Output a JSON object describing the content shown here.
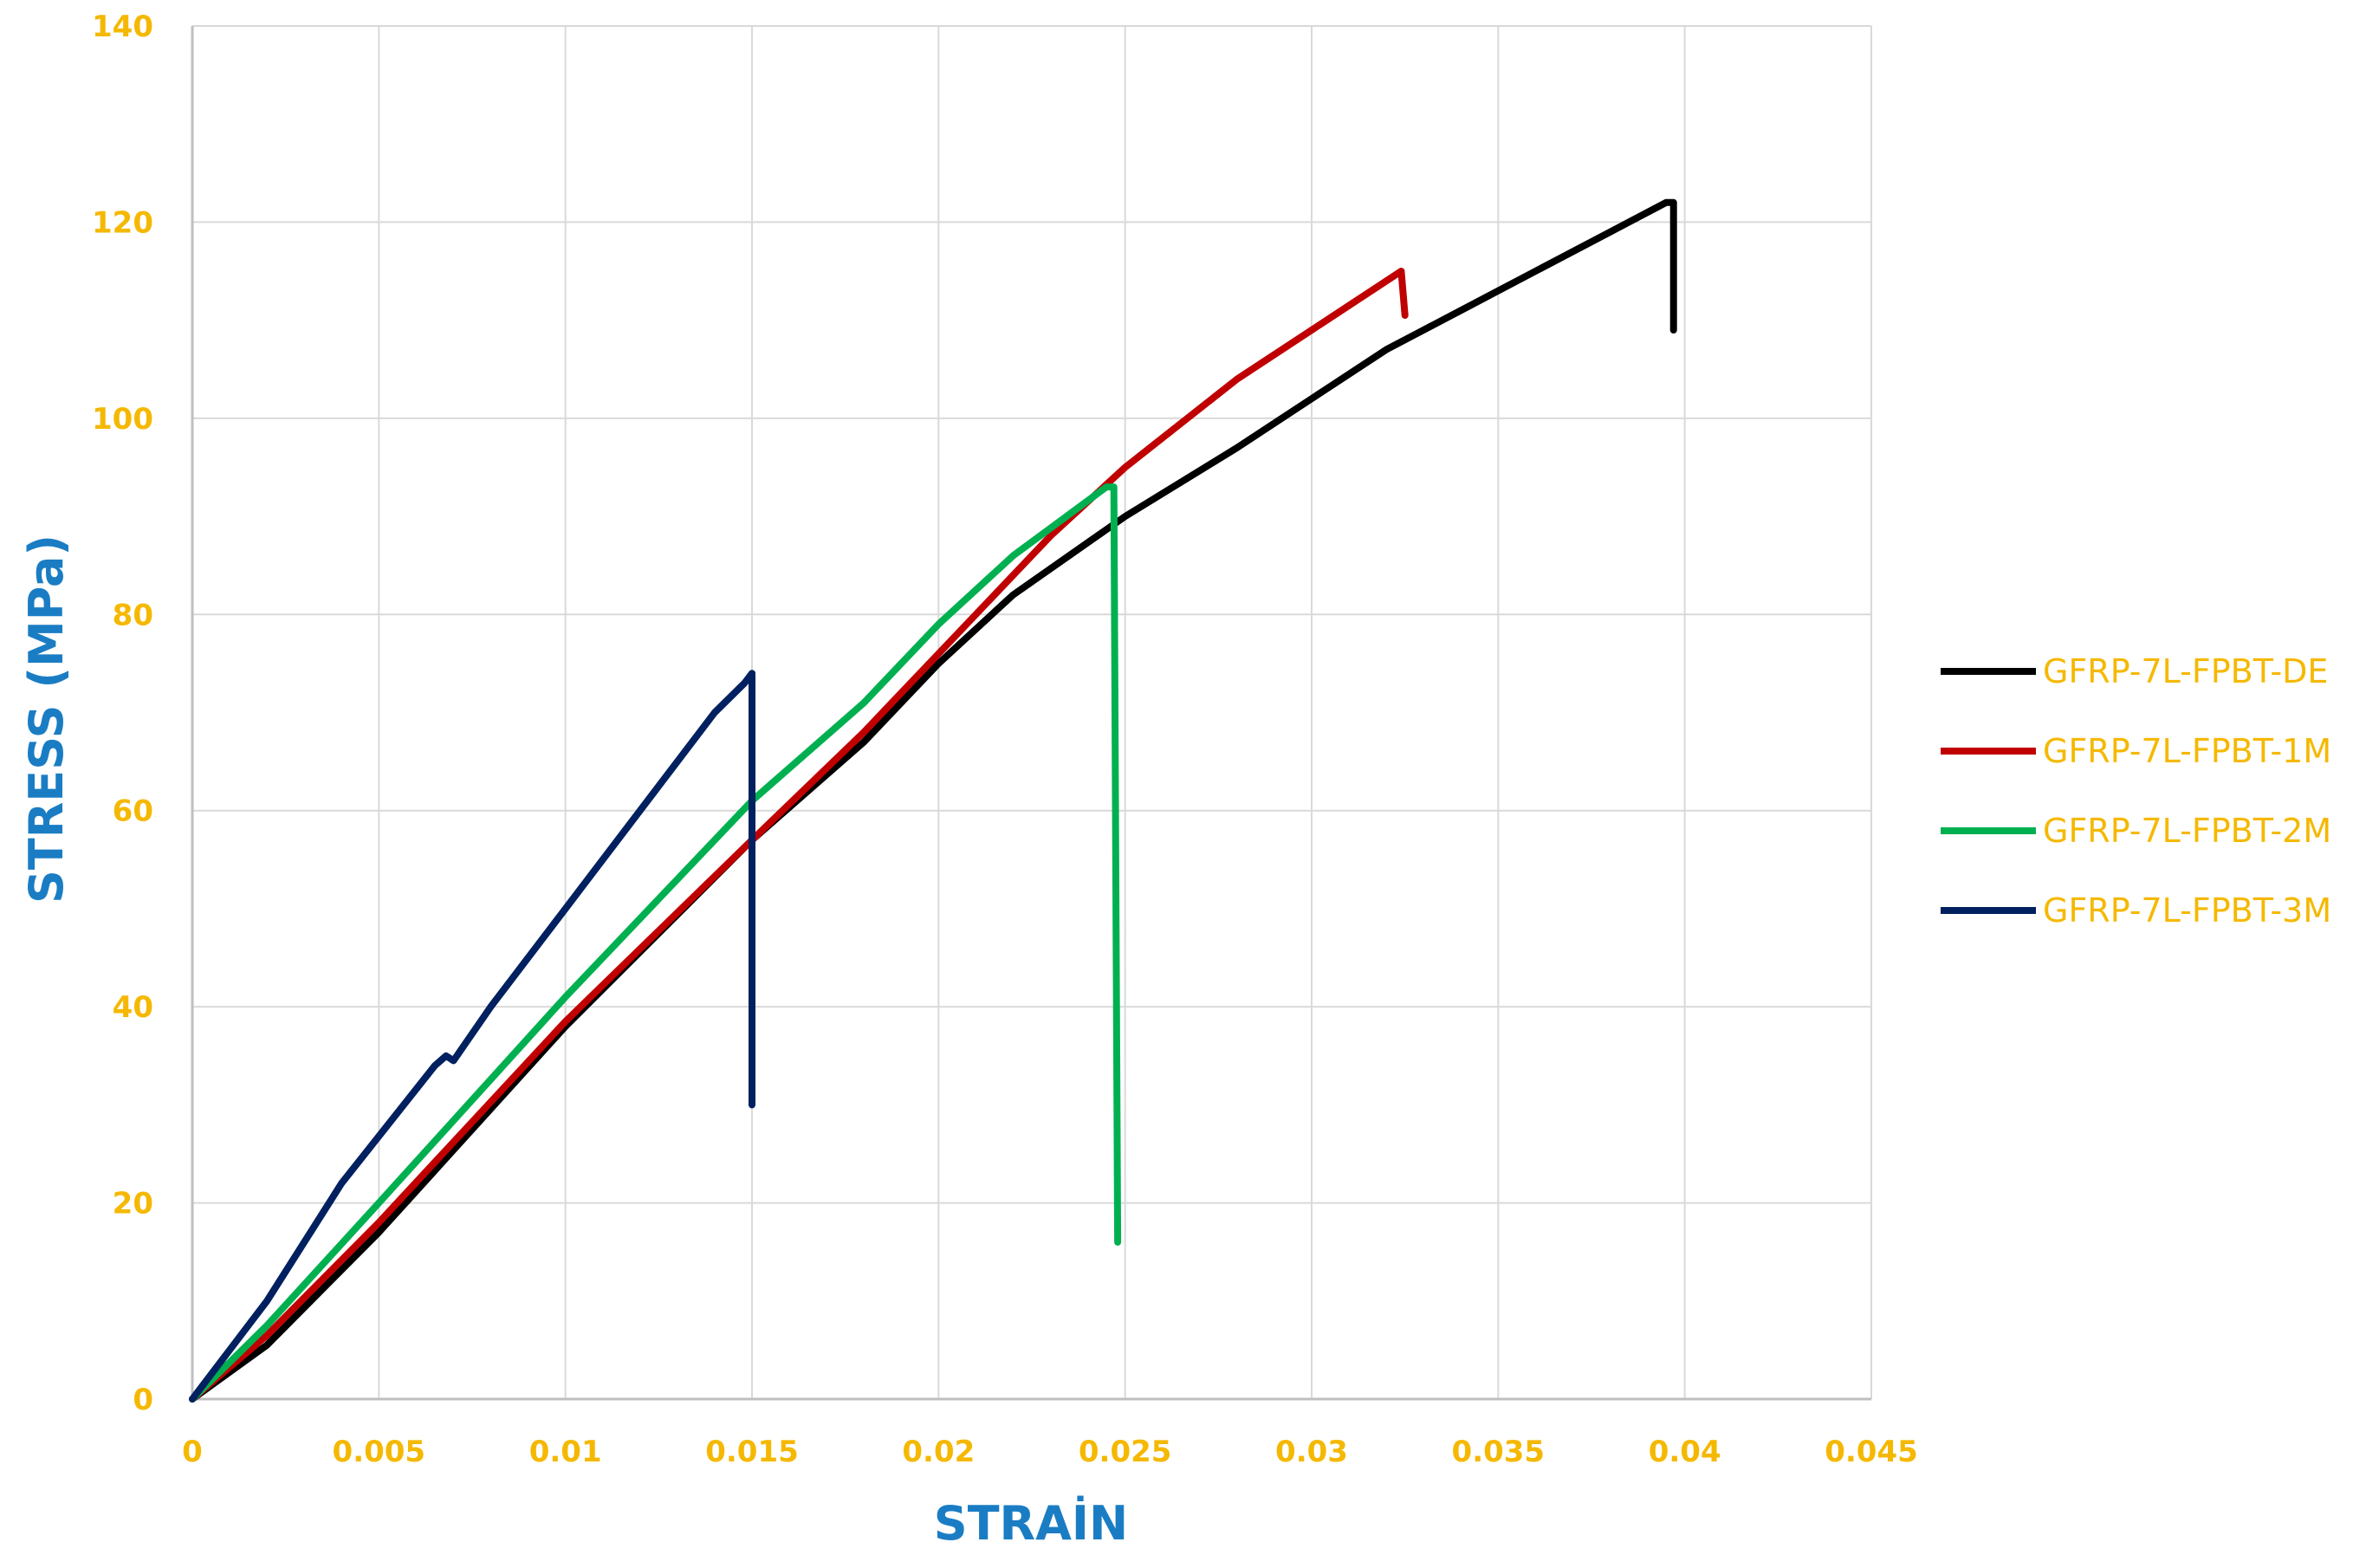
{
  "chart_data": {
    "type": "line",
    "title": "",
    "xlabel": "STRAİN",
    "ylabel": "STRESS (MPa)",
    "xlim": [
      0,
      0.045
    ],
    "ylim": [
      0,
      140
    ],
    "x_ticks": [
      "0",
      "0.005",
      "0.01",
      "0.015",
      "0.02",
      "0.025",
      "0.03",
      "0.035",
      "0.04",
      "0.045"
    ],
    "y_ticks": [
      "0",
      "20",
      "40",
      "60",
      "80",
      "100",
      "120",
      "140"
    ],
    "grid": true,
    "legend_position": "right",
    "colors": {
      "tick_labels": "#F5B800",
      "axis_titles": "#1A7DC4",
      "legend_text": "#F5B800",
      "grid": "#D9D9D9"
    },
    "series": [
      {
        "name": "GFRP-7L-FPBT-DE",
        "color": "#000000",
        "points": [
          [
            0,
            0
          ],
          [
            0.002,
            5.5
          ],
          [
            0.005,
            17
          ],
          [
            0.01,
            38
          ],
          [
            0.015,
            57
          ],
          [
            0.018,
            67
          ],
          [
            0.02,
            75
          ],
          [
            0.022,
            82
          ],
          [
            0.025,
            90
          ],
          [
            0.028,
            97
          ],
          [
            0.03,
            102
          ],
          [
            0.032,
            107
          ],
          [
            0.034,
            111
          ],
          [
            0.036,
            115
          ],
          [
            0.038,
            119
          ],
          [
            0.0395,
            122
          ],
          [
            0.0397,
            122
          ],
          [
            0.0397,
            109
          ]
        ]
      },
      {
        "name": "GFRP-7L-FPBT-1M",
        "color": "#C00000",
        "points": [
          [
            0,
            0
          ],
          [
            0.002,
            6.5
          ],
          [
            0.005,
            18
          ],
          [
            0.01,
            38.5
          ],
          [
            0.015,
            57
          ],
          [
            0.018,
            68
          ],
          [
            0.02,
            76
          ],
          [
            0.023,
            88
          ],
          [
            0.025,
            95
          ],
          [
            0.028,
            104
          ],
          [
            0.03,
            109
          ],
          [
            0.032,
            114
          ],
          [
            0.0324,
            115
          ],
          [
            0.0325,
            110.5
          ]
        ]
      },
      {
        "name": "GFRP-7L-FPBT-2M",
        "color": "#00B050",
        "points": [
          [
            0,
            0
          ],
          [
            0.002,
            7.5
          ],
          [
            0.005,
            20
          ],
          [
            0.01,
            41
          ],
          [
            0.015,
            61
          ],
          [
            0.018,
            71
          ],
          [
            0.02,
            79
          ],
          [
            0.022,
            86
          ],
          [
            0.0245,
            93
          ],
          [
            0.0247,
            93
          ],
          [
            0.0248,
            16
          ]
        ]
      },
      {
        "name": "GFRP-7L-FPBT-3M",
        "color": "#002060",
        "points": [
          [
            0,
            0
          ],
          [
            0.002,
            10
          ],
          [
            0.004,
            22
          ],
          [
            0.0065,
            34
          ],
          [
            0.0068,
            35
          ],
          [
            0.007,
            34.5
          ],
          [
            0.008,
            40
          ],
          [
            0.01,
            50
          ],
          [
            0.012,
            60
          ],
          [
            0.014,
            70
          ],
          [
            0.0148,
            73
          ],
          [
            0.015,
            74
          ],
          [
            0.015,
            30
          ]
        ]
      }
    ]
  }
}
